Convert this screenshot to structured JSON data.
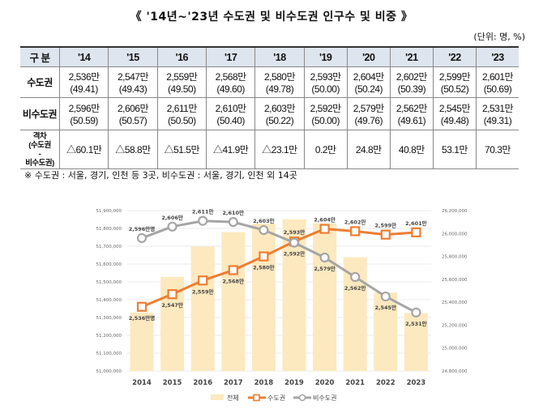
{
  "title": "《 '14년~'23년 수도권 및 비수도권 인구수 및 비중 》",
  "unit": "(단위: 명, %)",
  "table": {
    "header": [
      "구 분",
      "'14",
      "'15",
      "'16",
      "'17",
      "'18",
      "'19",
      "'20",
      "'21",
      "'22",
      "'23"
    ],
    "rows": [
      {
        "label": "수도권",
        "values": [
          "2,536만",
          "2,547만",
          "2,559만",
          "2,568만",
          "2,580만",
          "2,593만",
          "2,604만",
          "2,602만",
          "2,599만",
          "2,601만"
        ],
        "shares": [
          "(49.41)",
          "(49.43)",
          "(49.50)",
          "(49.60)",
          "(49.78)",
          "(50.00)",
          "(50.24)",
          "(50.39)",
          "(50.52)",
          "(50.69)"
        ]
      },
      {
        "label": "비수도권",
        "values": [
          "2,596만",
          "2,606만",
          "2,611만",
          "2,610만",
          "2,603만",
          "2,592만",
          "2,579만",
          "2,562만",
          "2,545만",
          "2,531만"
        ],
        "shares": [
          "(50.59)",
          "(50.57)",
          "(50.50)",
          "(50.40)",
          "(50.22)",
          "(50.00)",
          "(49.76)",
          "(49.61)",
          "(49.48)",
          "(49.31)"
        ]
      },
      {
        "label": "격차\n(수도권\n-\n비수도권)",
        "values": [
          "△60.1만",
          "△58.8만",
          "△51.5만",
          "△41.9만",
          "△23.1만",
          "0.2만",
          "24.8만",
          "40.8만",
          "53.1만",
          "70.3만"
        ]
      }
    ]
  },
  "note": "※ 수도권 : 서울, 경기, 인천 등 3곳, 비수도권 : 서울, 경기, 인천 외 14곳",
  "chart_data": {
    "type": "bar+line",
    "categories": [
      "2014",
      "2015",
      "2016",
      "2017",
      "2018",
      "2019",
      "2020",
      "2021",
      "2022",
      "2023"
    ],
    "left_axis": {
      "range": [
        51000000,
        51900000
      ],
      "ticks": [
        "51,000,000",
        "51,100,000",
        "51,200,000",
        "51,300,000",
        "51,400,000",
        "51,500,000",
        "51,600,000",
        "51,700,000",
        "51,800,000",
        "51,900,000"
      ]
    },
    "right_axis": {
      "range": [
        24800000,
        26200000
      ],
      "ticks": [
        "24,800,000",
        "25,000,000",
        "25,200,000",
        "25,400,000",
        "25,600,000",
        "25,800,000",
        "26,000,000",
        "26,200,000"
      ]
    },
    "grid": true,
    "legend": "bottom",
    "series": [
      {
        "name": "전체",
        "type": "bar",
        "axis": "left",
        "color": "#fde9bf",
        "values": [
          51328000,
          51528000,
          51698000,
          51779000,
          51827000,
          51851000,
          51829000,
          51638000,
          51440000,
          51325000
        ]
      },
      {
        "name": "수도권",
        "type": "line",
        "axis": "right",
        "color": "#ed7d31",
        "values": [
          25360000,
          25470000,
          25590000,
          25680000,
          25800000,
          25930000,
          26040000,
          26020000,
          25990000,
          26010000
        ],
        "labels": [
          "2,536만명",
          "2,547만",
          "2,559만",
          "2,568만",
          "2,580만",
          "2,593만",
          "2,604만",
          "2,602만",
          "2,599만",
          "2,601만"
        ]
      },
      {
        "name": "비수도권",
        "type": "line",
        "axis": "right",
        "color": "#a5a5a5",
        "values": [
          25960000,
          26060000,
          26110000,
          26100000,
          26030000,
          25920000,
          25790000,
          25620000,
          25450000,
          25310000
        ],
        "labels": [
          "2,596만명",
          "2,606만",
          "2,611만",
          "2,610만",
          "2,603만",
          "2,592만",
          "2,579만",
          "2,562만",
          "2,545만",
          "2,531만"
        ]
      }
    ]
  }
}
